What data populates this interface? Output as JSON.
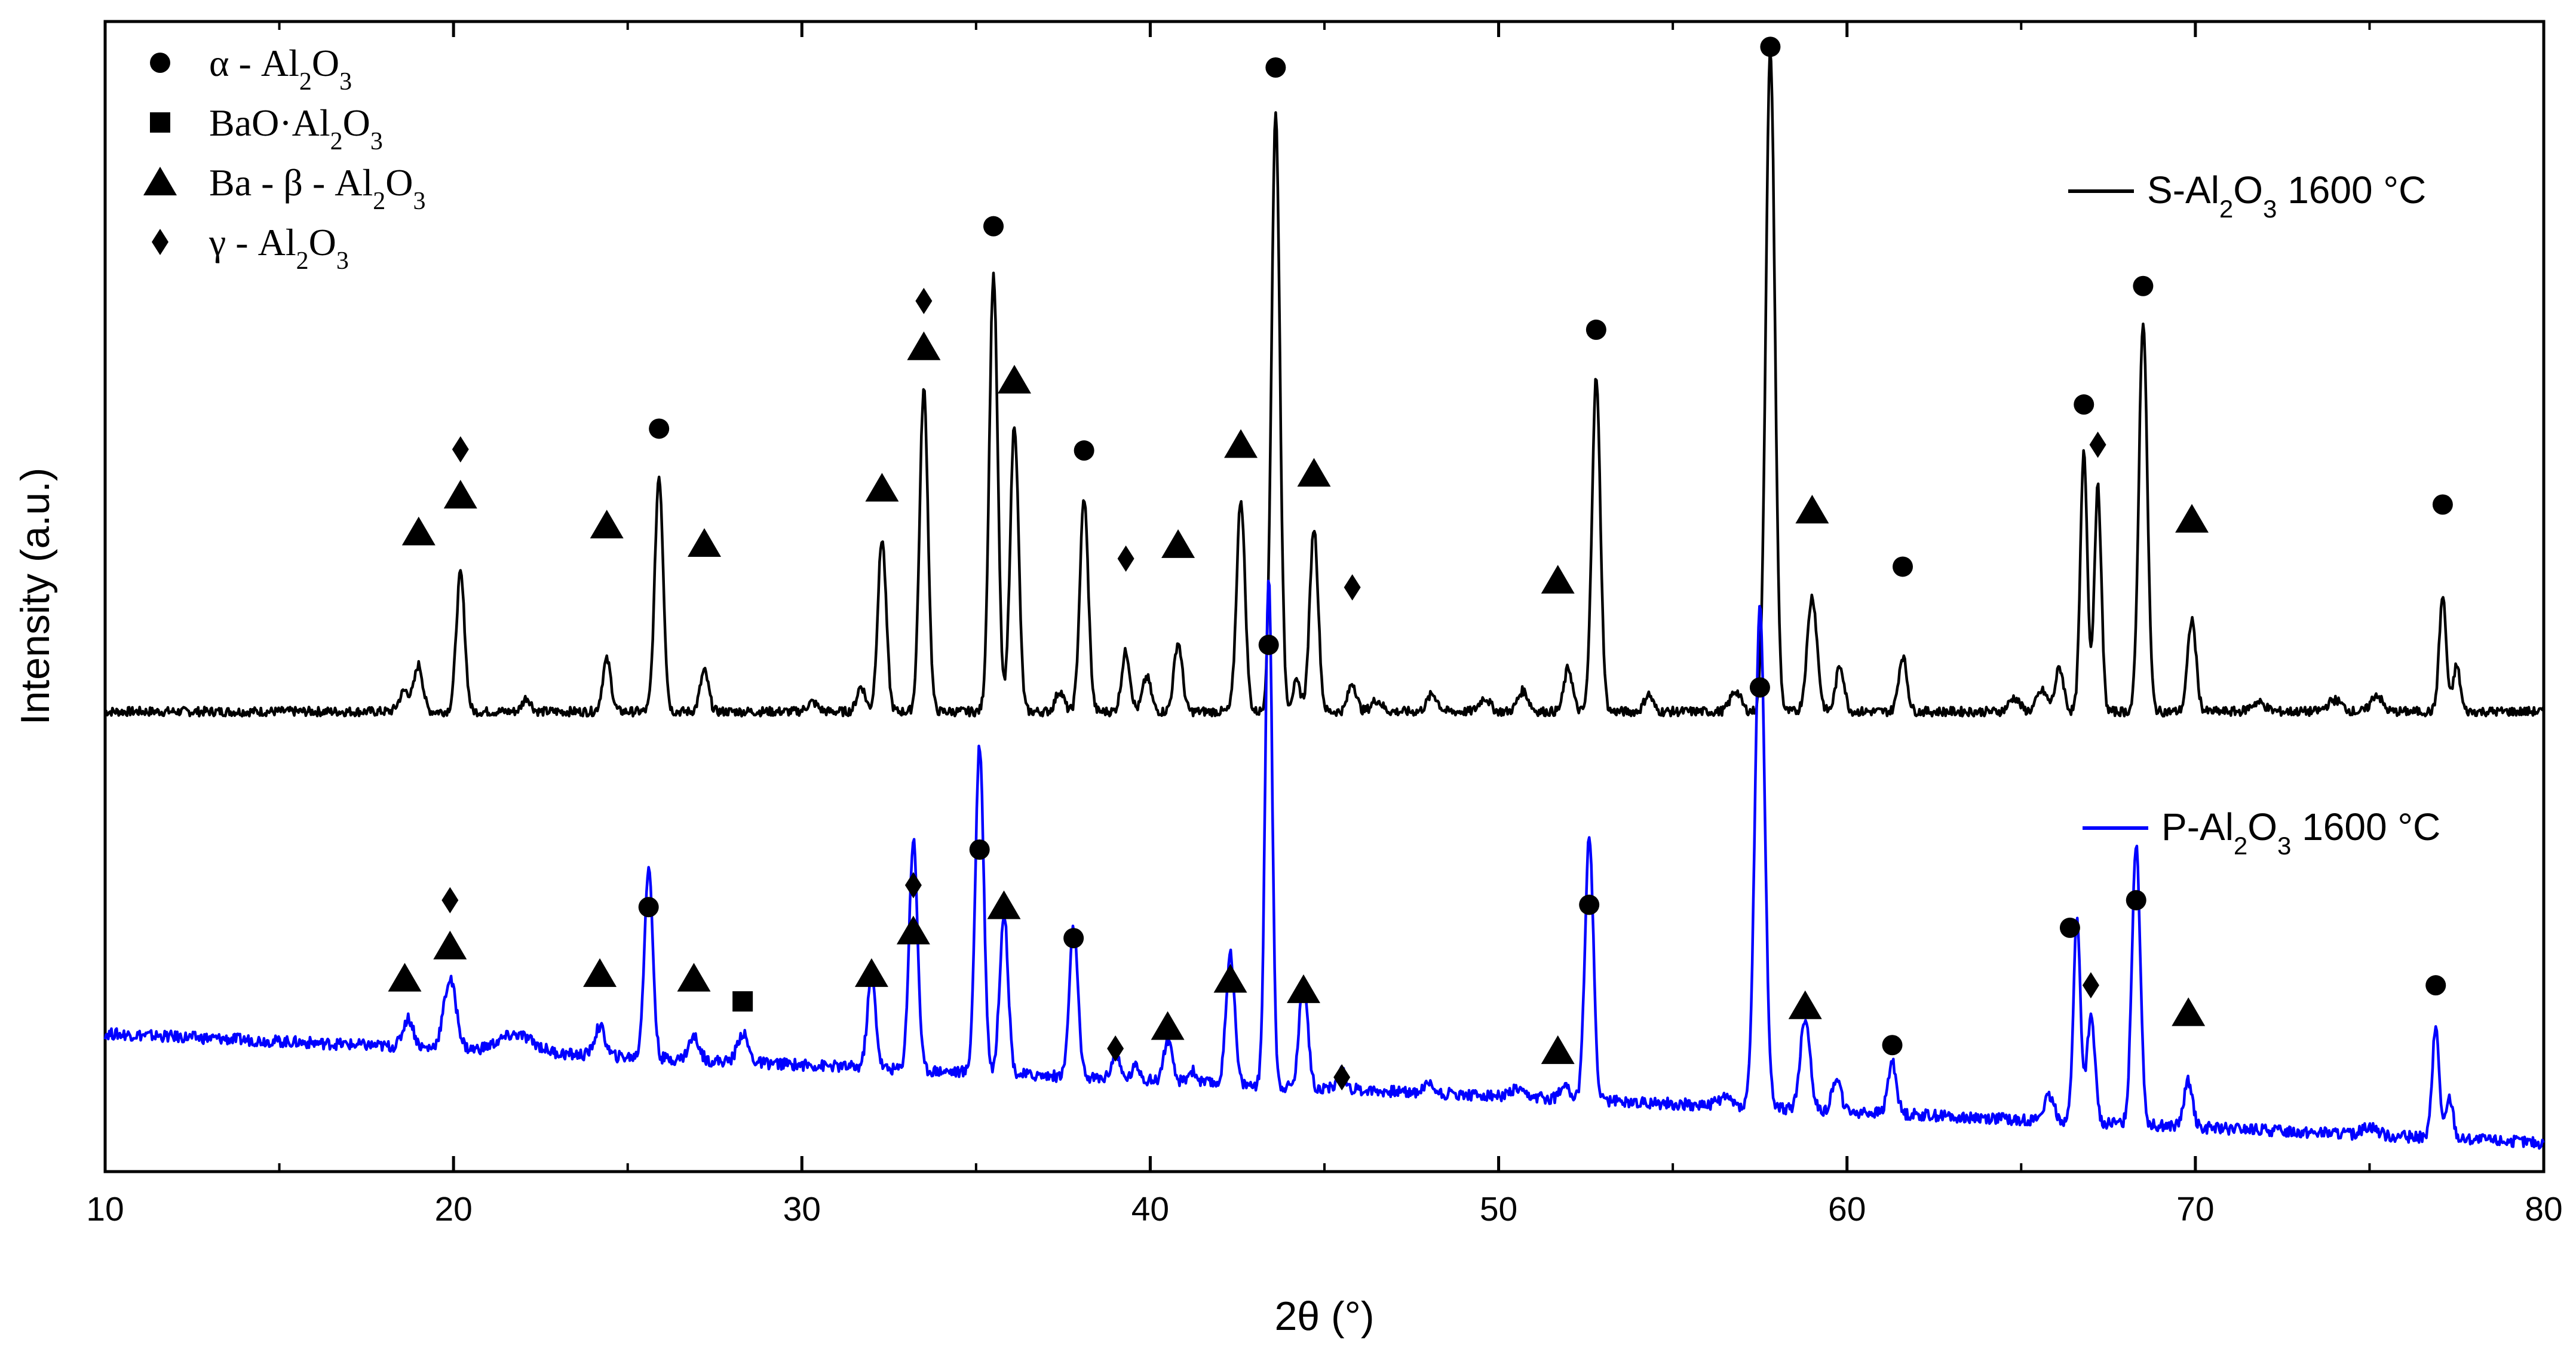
{
  "chart_data": {
    "type": "line",
    "title": "",
    "xlabel": "2θ (°)",
    "ylabel": "Intensity (a.u.)",
    "xlim": [
      10,
      80
    ],
    "ylim": [
      0,
      1000
    ],
    "x_ticks": [
      10,
      20,
      30,
      40,
      50,
      60,
      70,
      80
    ],
    "x_tick_labels": [
      "10",
      "20",
      "30",
      "40",
      "50",
      "60",
      "70",
      "80"
    ],
    "y_ticks_shown": false,
    "grid": false,
    "legend_placement": "top-left",
    "phases": [
      {
        "key": "alpha",
        "marker": "circle",
        "label_parts": [
          [
            "α - Al",
            "n"
          ],
          [
            "2",
            "s"
          ],
          [
            "O",
            "n"
          ],
          [
            "3",
            "s"
          ]
        ]
      },
      {
        "key": "bao",
        "marker": "square",
        "label_parts": [
          [
            "BaO·Al",
            "n"
          ],
          [
            "2",
            "s"
          ],
          [
            "O",
            "n"
          ],
          [
            "3",
            "s"
          ]
        ]
      },
      {
        "key": "ba_beta",
        "marker": "triangle",
        "label_parts": [
          [
            "Ba - β - Al",
            "n"
          ],
          [
            "2",
            "s"
          ],
          [
            "O",
            "n"
          ],
          [
            "3",
            "s"
          ]
        ]
      },
      {
        "key": "gamma",
        "marker": "diamond",
        "label_parts": [
          [
            "γ - Al",
            "n"
          ],
          [
            "2",
            "s"
          ],
          [
            "O",
            "n"
          ],
          [
            "3",
            "s"
          ]
        ]
      }
    ],
    "series": [
      {
        "key": "S",
        "name": "S-Al2O3 1600 °C",
        "label_parts": [
          [
            "S-Al",
            "n"
          ],
          [
            "2",
            "s"
          ],
          [
            "O",
            "n"
          ],
          [
            "3",
            "s"
          ],
          [
            " 1600 °C",
            "n"
          ]
        ],
        "color": "#000000",
        "baseline": 400,
        "noise": 4,
        "peaks": [
          [
            18.6,
            18,
            0.15
          ],
          [
            19.0,
            40,
            0.12
          ],
          [
            20.2,
            120,
            0.12
          ],
          [
            22.1,
            12,
            0.12
          ],
          [
            24.4,
            45,
            0.12
          ],
          [
            25.9,
            205,
            0.12
          ],
          [
            27.2,
            35,
            0.12
          ],
          [
            30.3,
            8,
            0.15
          ],
          [
            31.7,
            22,
            0.12
          ],
          [
            32.3,
            150,
            0.12
          ],
          [
            33.5,
            280,
            0.12
          ],
          [
            35.5,
            380,
            0.12
          ],
          [
            36.1,
            250,
            0.12
          ],
          [
            37.4,
            18,
            0.12
          ],
          [
            38.1,
            185,
            0.12
          ],
          [
            39.3,
            52,
            0.12
          ],
          [
            39.9,
            30,
            0.12
          ],
          [
            40.8,
            60,
            0.12
          ],
          [
            42.6,
            185,
            0.12
          ],
          [
            43.6,
            520,
            0.12
          ],
          [
            44.2,
            25,
            0.12
          ],
          [
            44.7,
            160,
            0.12
          ],
          [
            45.8,
            25,
            0.12
          ],
          [
            46.5,
            10,
            0.15
          ],
          [
            48.1,
            15,
            0.15
          ],
          [
            49.6,
            12,
            0.15
          ],
          [
            50.7,
            18,
            0.15
          ],
          [
            52.0,
            38,
            0.12
          ],
          [
            52.8,
            290,
            0.12
          ],
          [
            54.3,
            15,
            0.12
          ],
          [
            56.8,
            18,
            0.15
          ],
          [
            57.8,
            575,
            0.13
          ],
          [
            59.0,
            100,
            0.14
          ],
          [
            59.8,
            40,
            0.12
          ],
          [
            61.6,
            48,
            0.12
          ],
          [
            64.8,
            12,
            0.15
          ],
          [
            65.6,
            18,
            0.15
          ],
          [
            66.1,
            38,
            0.12
          ],
          [
            66.8,
            225,
            0.1
          ],
          [
            67.2,
            195,
            0.1
          ],
          [
            68.5,
            340,
            0.12
          ],
          [
            69.9,
            80,
            0.12
          ],
          [
            71.8,
            8,
            0.2
          ],
          [
            74.0,
            10,
            0.2
          ],
          [
            75.2,
            15,
            0.15
          ],
          [
            77.1,
            100,
            0.1
          ],
          [
            77.5,
            40,
            0.1
          ]
        ]
      },
      {
        "key": "P",
        "name": "P-Al2O3 1600 °C",
        "label_parts": [
          [
            "P-Al",
            "n"
          ],
          [
            "2",
            "s"
          ],
          [
            "O",
            "n"
          ],
          [
            "3",
            "s"
          ],
          [
            " 1600 °C",
            "n"
          ]
        ],
        "color": "#0000ff",
        "baseline_start": 120,
        "baseline_end": 25,
        "noise": 5,
        "peaks": [
          [
            18.7,
            25,
            0.15
          ],
          [
            19.9,
            60,
            0.18
          ],
          [
            21.8,
            15,
            0.5
          ],
          [
            24.2,
            25,
            0.15
          ],
          [
            25.6,
            165,
            0.12
          ],
          [
            26.9,
            20,
            0.15
          ],
          [
            28.3,
            25,
            0.15
          ],
          [
            32.0,
            80,
            0.12
          ],
          [
            33.2,
            200,
            0.12
          ],
          [
            35.1,
            285,
            0.12
          ],
          [
            35.8,
            140,
            0.12
          ],
          [
            37.8,
            130,
            0.12
          ],
          [
            39.0,
            20,
            0.12
          ],
          [
            39.6,
            12,
            0.12
          ],
          [
            40.5,
            35,
            0.12
          ],
          [
            41.2,
            10,
            0.12
          ],
          [
            42.3,
            115,
            0.12
          ],
          [
            43.4,
            445,
            0.1
          ],
          [
            44.4,
            95,
            0.12
          ],
          [
            45.5,
            15,
            0.12
          ],
          [
            48.0,
            8,
            0.15
          ],
          [
            50.5,
            6,
            0.15
          ],
          [
            51.9,
            15,
            0.12
          ],
          [
            52.6,
            230,
            0.12
          ],
          [
            56.5,
            8,
            0.2
          ],
          [
            57.5,
            435,
            0.14
          ],
          [
            58.8,
            80,
            0.14
          ],
          [
            59.7,
            30,
            0.12
          ],
          [
            61.3,
            45,
            0.12
          ],
          [
            65.8,
            20,
            0.15
          ],
          [
            66.6,
            175,
            0.1
          ],
          [
            67.0,
            90,
            0.12
          ],
          [
            68.3,
            245,
            0.12
          ],
          [
            69.8,
            40,
            0.12
          ],
          [
            75.0,
            8,
            0.2
          ],
          [
            76.9,
            95,
            0.1
          ],
          [
            77.3,
            35,
            0.1
          ]
        ]
      }
    ],
    "phase_markers": [
      {
        "x": 19.0,
        "y": 556,
        "phase": "ba_beta"
      },
      {
        "x": 20.2,
        "y": 588,
        "phase": "ba_beta"
      },
      {
        "x": 20.2,
        "y": 628,
        "phase": "gamma"
      },
      {
        "x": 24.4,
        "y": 562,
        "phase": "ba_beta"
      },
      {
        "x": 25.9,
        "y": 646,
        "phase": "alpha"
      },
      {
        "x": 27.2,
        "y": 546,
        "phase": "ba_beta"
      },
      {
        "x": 32.3,
        "y": 594,
        "phase": "ba_beta"
      },
      {
        "x": 33.5,
        "y": 717,
        "phase": "ba_beta"
      },
      {
        "x": 33.5,
        "y": 757,
        "phase": "gamma"
      },
      {
        "x": 35.5,
        "y": 822,
        "phase": "alpha"
      },
      {
        "x": 36.1,
        "y": 688,
        "phase": "ba_beta"
      },
      {
        "x": 38.1,
        "y": 627,
        "phase": "alpha"
      },
      {
        "x": 39.3,
        "y": 533,
        "phase": "gamma"
      },
      {
        "x": 40.8,
        "y": 545,
        "phase": "ba_beta"
      },
      {
        "x": 42.6,
        "y": 632,
        "phase": "ba_beta"
      },
      {
        "x": 43.6,
        "y": 960,
        "phase": "alpha"
      },
      {
        "x": 44.7,
        "y": 607,
        "phase": "ba_beta"
      },
      {
        "x": 45.8,
        "y": 508,
        "phase": "gamma"
      },
      {
        "x": 51.7,
        "y": 514,
        "phase": "ba_beta"
      },
      {
        "x": 52.8,
        "y": 732,
        "phase": "alpha"
      },
      {
        "x": 57.8,
        "y": 978,
        "phase": "alpha"
      },
      {
        "x": 59.0,
        "y": 575,
        "phase": "ba_beta"
      },
      {
        "x": 61.6,
        "y": 526,
        "phase": "alpha"
      },
      {
        "x": 66.8,
        "y": 667,
        "phase": "alpha"
      },
      {
        "x": 67.2,
        "y": 632,
        "phase": "gamma"
      },
      {
        "x": 68.5,
        "y": 770,
        "phase": "alpha"
      },
      {
        "x": 69.9,
        "y": 567,
        "phase": "ba_beta"
      },
      {
        "x": 77.1,
        "y": 580,
        "phase": "alpha"
      },
      {
        "x": 18.6,
        "y": 168,
        "phase": "ba_beta"
      },
      {
        "x": 19.9,
        "y": 196,
        "phase": "ba_beta"
      },
      {
        "x": 19.9,
        "y": 236,
        "phase": "gamma"
      },
      {
        "x": 24.2,
        "y": 172,
        "phase": "ba_beta"
      },
      {
        "x": 25.6,
        "y": 230,
        "phase": "alpha"
      },
      {
        "x": 26.9,
        "y": 168,
        "phase": "ba_beta"
      },
      {
        "x": 28.3,
        "y": 148,
        "phase": "bao"
      },
      {
        "x": 32.0,
        "y": 172,
        "phase": "ba_beta"
      },
      {
        "x": 33.2,
        "y": 209,
        "phase": "ba_beta"
      },
      {
        "x": 33.2,
        "y": 249,
        "phase": "gamma"
      },
      {
        "x": 35.1,
        "y": 280,
        "phase": "alpha"
      },
      {
        "x": 35.8,
        "y": 231,
        "phase": "ba_beta"
      },
      {
        "x": 37.8,
        "y": 203,
        "phase": "alpha"
      },
      {
        "x": 39.0,
        "y": 107,
        "phase": "gamma"
      },
      {
        "x": 40.5,
        "y": 126,
        "phase": "ba_beta"
      },
      {
        "x": 42.3,
        "y": 167,
        "phase": "ba_beta"
      },
      {
        "x": 43.4,
        "y": 458,
        "phase": "alpha"
      },
      {
        "x": 44.4,
        "y": 158,
        "phase": "ba_beta"
      },
      {
        "x": 45.5,
        "y": 82,
        "phase": "gamma"
      },
      {
        "x": 51.7,
        "y": 105,
        "phase": "ba_beta"
      },
      {
        "x": 52.6,
        "y": 232,
        "phase": "alpha"
      },
      {
        "x": 57.5,
        "y": 421,
        "phase": "alpha"
      },
      {
        "x": 58.8,
        "y": 144,
        "phase": "ba_beta"
      },
      {
        "x": 61.3,
        "y": 110,
        "phase": "alpha"
      },
      {
        "x": 66.4,
        "y": 212,
        "phase": "alpha"
      },
      {
        "x": 67.0,
        "y": 162,
        "phase": "gamma"
      },
      {
        "x": 68.3,
        "y": 236,
        "phase": "alpha"
      },
      {
        "x": 69.8,
        "y": 138,
        "phase": "ba_beta"
      },
      {
        "x": 76.9,
        "y": 162,
        "phase": "alpha"
      }
    ]
  }
}
